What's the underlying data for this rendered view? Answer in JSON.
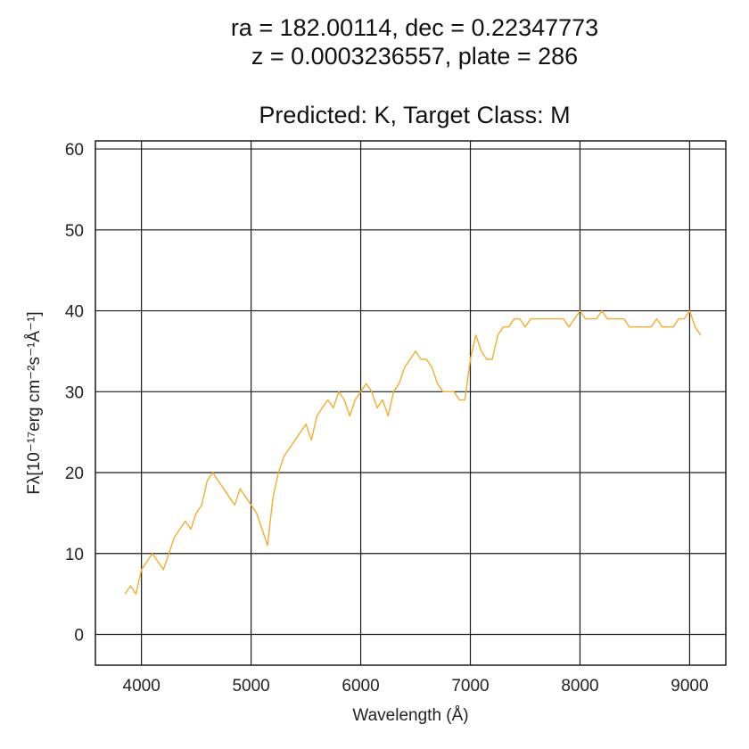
{
  "title": {
    "line1": "ra = 182.00114, dec = 0.22347773",
    "line2": "z = 0.0003236557, plate = 286",
    "line3": "Predicted: K, Target Class: M"
  },
  "colors": {
    "line": "#f0ad33",
    "grid": "#1a1a1a",
    "frame": "#1a1a1a"
  },
  "chart_data": {
    "type": "line",
    "title": "ra = 182.00114, dec = 0.22347773 z = 0.0003236557, plate = 286 Predicted: K, Target Class: M",
    "xlabel": "Wavelength (Å)",
    "ylabel": "Fλ[10⁻¹⁷erg cm⁻²s⁻¹Å⁻¹]",
    "xlim": [
      3580,
      9330
    ],
    "ylim": [
      -3.8,
      61
    ],
    "x_ticks": [
      4000,
      5000,
      6000,
      7000,
      8000,
      9000
    ],
    "y_ticks": [
      0,
      10,
      20,
      30,
      40,
      50,
      60
    ],
    "grid": true,
    "legend": "none",
    "series": [
      {
        "x": [
          3850,
          3900,
          3950,
          4000,
          4050,
          4100,
          4150,
          4200,
          4250,
          4300,
          4350,
          4400,
          4450,
          4500,
          4550,
          4600,
          4650,
          4700,
          4750,
          4800,
          4850,
          4900,
          4950,
          5000,
          5050,
          5100,
          5150,
          5200,
          5250,
          5300,
          5350,
          5400,
          5450,
          5500,
          5550,
          5600,
          5650,
          5700,
          5750,
          5800,
          5850,
          5900,
          5950,
          6000,
          6050,
          6100,
          6150,
          6200,
          6250,
          6300,
          6350,
          6400,
          6450,
          6500,
          6550,
          6600,
          6650,
          6700,
          6750,
          6800,
          6850,
          6900,
          6950,
          7000,
          7050,
          7100,
          7150,
          7200,
          7250,
          7300,
          7350,
          7400,
          7450,
          7500,
          7550,
          7600,
          7650,
          7700,
          7750,
          7800,
          7850,
          7900,
          7950,
          8000,
          8050,
          8100,
          8150,
          8200,
          8250,
          8300,
          8350,
          8400,
          8450,
          8500,
          8550,
          8600,
          8650,
          8700,
          8750,
          8800,
          8850,
          8900,
          8950,
          9000,
          9050,
          9100
        ],
        "values": [
          5,
          6,
          5,
          8,
          9,
          10,
          9,
          8,
          10,
          12,
          13,
          14,
          13,
          15,
          16,
          19,
          20,
          19,
          18,
          17,
          16,
          18,
          17,
          16,
          15,
          13,
          11,
          17,
          20,
          22,
          23,
          24,
          25,
          26,
          24,
          27,
          28,
          29,
          28,
          30,
          29,
          27,
          29,
          30,
          31,
          30,
          28,
          29,
          27,
          30,
          31,
          33,
          34,
          35,
          34,
          34,
          33,
          31,
          30,
          30,
          30,
          29,
          29,
          34,
          37,
          35,
          34,
          34,
          37,
          38,
          38,
          39,
          39,
          38,
          39,
          39,
          39,
          39,
          39,
          39,
          39,
          38,
          39,
          40,
          39,
          39,
          39,
          40,
          39,
          39,
          39,
          39,
          38,
          38,
          38,
          38,
          38,
          39,
          38,
          38,
          38,
          39,
          39,
          40,
          38,
          37
        ]
      }
    ]
  }
}
